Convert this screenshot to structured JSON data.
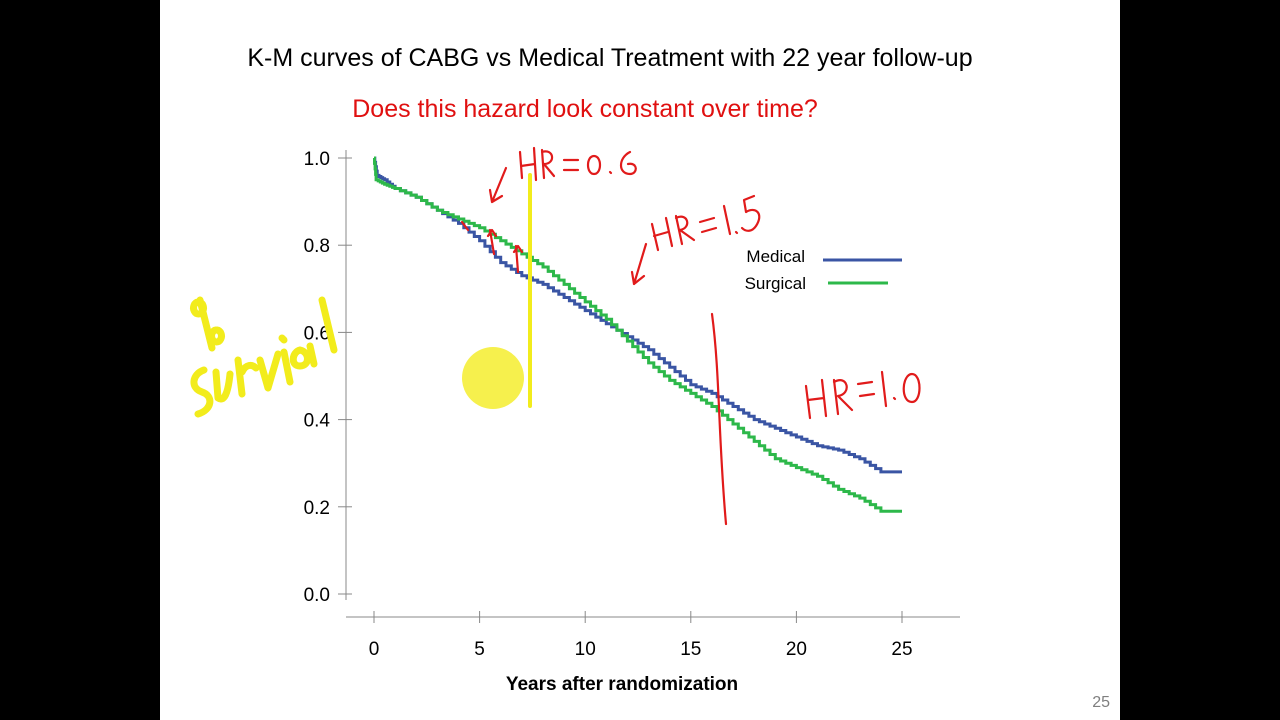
{
  "slide": {
    "title": "K-M curves of CABG vs Medical Treatment with 22 year follow-up",
    "subtitle": "Does this hazard look constant over time?",
    "page_number": "25"
  },
  "colors": {
    "title": "#000000",
    "subtitle": "#e01010",
    "medical": "#3a55a4",
    "surgical": "#2db84a",
    "annotation_red": "#e11b1b",
    "annotation_yellow": "#f2ec1c"
  },
  "chart_data": {
    "type": "line",
    "title": "",
    "xlabel": "Years after randomization",
    "ylabel": "",
    "xlim": [
      0,
      25
    ],
    "ylim": [
      0,
      1
    ],
    "x_ticks": [
      "0",
      "5",
      "10",
      "15",
      "20",
      "25"
    ],
    "y_ticks": [
      "0.0",
      "0.2",
      "0.4",
      "0.6",
      "0.8",
      "1.0"
    ],
    "legend_position": "top-right",
    "grid": false,
    "series": [
      {
        "name": "Medical",
        "color": "#3a55a4",
        "points": [
          [
            0,
            1.0
          ],
          [
            0.15,
            0.96
          ],
          [
            0.5,
            0.95
          ],
          [
            1,
            0.93
          ],
          [
            2,
            0.91
          ],
          [
            3,
            0.88
          ],
          [
            4,
            0.85
          ],
          [
            5,
            0.81
          ],
          [
            6,
            0.76
          ],
          [
            7,
            0.73
          ],
          [
            8,
            0.71
          ],
          [
            9,
            0.68
          ],
          [
            10,
            0.65
          ],
          [
            11,
            0.62
          ],
          [
            12,
            0.59
          ],
          [
            13,
            0.56
          ],
          [
            14,
            0.52
          ],
          [
            15,
            0.48
          ],
          [
            16,
            0.46
          ],
          [
            17,
            0.43
          ],
          [
            18,
            0.4
          ],
          [
            19,
            0.38
          ],
          [
            20,
            0.36
          ],
          [
            21,
            0.34
          ],
          [
            22,
            0.33
          ],
          [
            23,
            0.31
          ],
          [
            24,
            0.28
          ],
          [
            25,
            0.28
          ]
        ]
      },
      {
        "name": "Surgical",
        "color": "#2db84a",
        "points": [
          [
            0,
            1.0
          ],
          [
            0.1,
            0.95
          ],
          [
            0.5,
            0.94
          ],
          [
            1,
            0.93
          ],
          [
            2,
            0.91
          ],
          [
            3,
            0.88
          ],
          [
            4,
            0.86
          ],
          [
            5,
            0.84
          ],
          [
            6,
            0.81
          ],
          [
            7,
            0.78
          ],
          [
            8,
            0.75
          ],
          [
            9,
            0.71
          ],
          [
            10,
            0.67
          ],
          [
            11,
            0.63
          ],
          [
            12,
            0.58
          ],
          [
            13,
            0.53
          ],
          [
            14,
            0.49
          ],
          [
            15,
            0.46
          ],
          [
            16,
            0.43
          ],
          [
            17,
            0.39
          ],
          [
            18,
            0.35
          ],
          [
            19,
            0.31
          ],
          [
            20,
            0.29
          ],
          [
            21,
            0.27
          ],
          [
            22,
            0.24
          ],
          [
            23,
            0.22
          ],
          [
            24,
            0.19
          ],
          [
            25,
            0.19
          ]
        ]
      }
    ]
  },
  "annotations": {
    "hr_early": "HR = 0.6",
    "hr_mid": "HR=1.5",
    "hr_late": "HR=1.0",
    "y_handwritten": "% survival"
  }
}
